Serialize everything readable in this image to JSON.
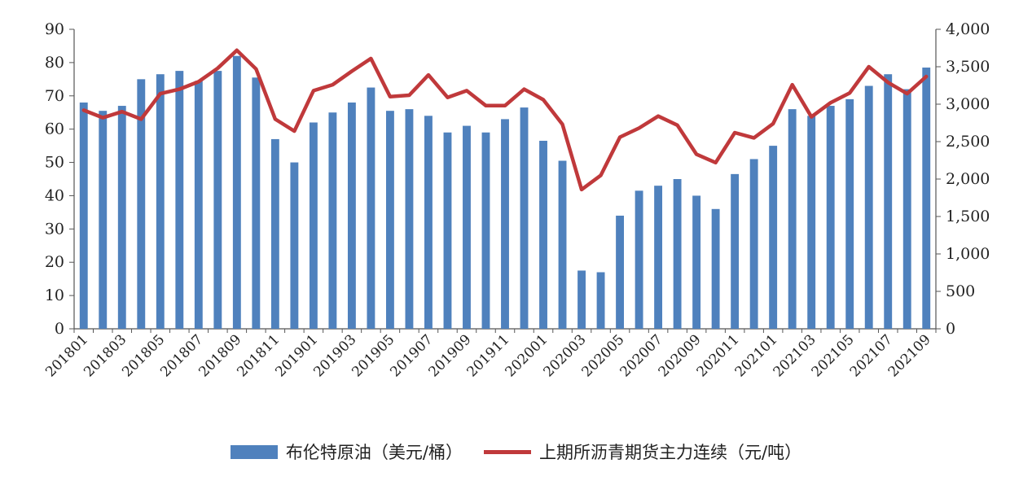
{
  "chart_data": {
    "type": "bar",
    "title": "",
    "categories": [
      "201801",
      "201802",
      "201803",
      "201804",
      "201805",
      "201806",
      "201807",
      "201808",
      "201809",
      "201810",
      "201811",
      "201812",
      "201901",
      "201902",
      "201903",
      "201904",
      "201905",
      "201906",
      "201907",
      "201908",
      "201909",
      "201910",
      "201911",
      "201912",
      "202001",
      "202002",
      "202003",
      "202004",
      "202005",
      "202006",
      "202007",
      "202008",
      "202009",
      "202010",
      "202011",
      "202012",
      "202101",
      "202102",
      "202103",
      "202104",
      "202105",
      "202106",
      "202107",
      "202108",
      "202109"
    ],
    "x_tick_labels": [
      "201801",
      "201803",
      "201805",
      "201807",
      "201809",
      "201811",
      "201901",
      "201903",
      "201905",
      "201907",
      "201909",
      "201911",
      "202001",
      "202003",
      "202005",
      "202007",
      "202009",
      "202011",
      "202101",
      "202103",
      "202105",
      "202107",
      "202109"
    ],
    "series": [
      {
        "name": "布伦特原油（美元/桶）",
        "type": "bar",
        "axis": "left",
        "color": "#4f81bd",
        "values": [
          68,
          65.5,
          67,
          75,
          76.5,
          77.5,
          74.5,
          77.5,
          82,
          75.5,
          57,
          50,
          62,
          65,
          68,
          72.5,
          65.5,
          66,
          64,
          59,
          61,
          59,
          63,
          66.5,
          56.5,
          50.5,
          17.5,
          17,
          34,
          41.5,
          43,
          45,
          40,
          36,
          46.5,
          51,
          55,
          66,
          64,
          67,
          69,
          73,
          76.5,
          72,
          78.5
        ]
      },
      {
        "name": "上期所沥青期货主力连续（元/吨）",
        "type": "line",
        "axis": "right",
        "color": "#c0393b",
        "values": [
          2920,
          2820,
          2900,
          2800,
          3140,
          3200,
          3300,
          3480,
          3720,
          3470,
          2800,
          2640,
          3180,
          3260,
          3440,
          3610,
          3100,
          3120,
          3390,
          3090,
          3180,
          2980,
          2980,
          3200,
          3060,
          2730,
          1860,
          2050,
          2560,
          2680,
          2840,
          2720,
          2330,
          2220,
          2620,
          2550,
          2740,
          3260,
          2830,
          3020,
          3150,
          3500,
          3290,
          3140,
          3370
        ]
      }
    ],
    "y_left": {
      "min": 0,
      "max": 90,
      "ticks": [
        "0",
        "10",
        "20",
        "30",
        "40",
        "50",
        "60",
        "70",
        "80",
        "90"
      ]
    },
    "y_right": {
      "min": 0,
      "max": 4000,
      "ticks": [
        "0",
        "500",
        "1,000",
        "1,500",
        "2,000",
        "2,500",
        "3,000",
        "3,500",
        "4,000"
      ]
    },
    "grid": false,
    "legend_position": "bottom"
  },
  "legend": {
    "bar_label": "布伦特原油（美元/桶）",
    "line_label": "上期所沥青期货主力连续（元/吨）"
  }
}
